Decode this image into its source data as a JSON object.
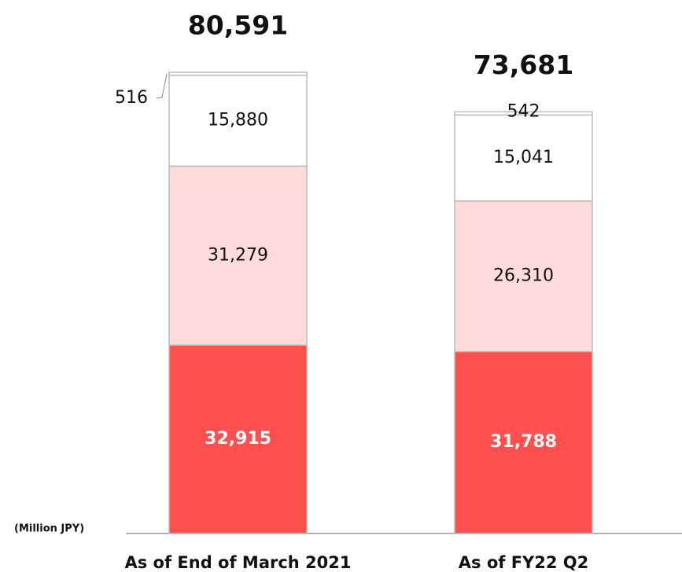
{
  "chart_data": {
    "type": "stacked_bar",
    "unit_label": "(Million JPY)",
    "categories": [
      "As of End of March 2021",
      "As of FY22 Q2"
    ],
    "series": [
      {
        "color": "#ff4f4f",
        "values": [
          32915,
          31788
        ],
        "value_labels": [
          "32,915",
          "31,788"
        ]
      },
      {
        "color": "#fddbdb",
        "values": [
          31279,
          26310
        ],
        "value_labels": [
          "31,279",
          "26,310"
        ]
      },
      {
        "color": "#ffffff",
        "values": [
          15880,
          15041
        ],
        "value_labels": [
          "15,880",
          "15,041"
        ]
      },
      {
        "color": "#ffffff",
        "values": [
          516,
          542
        ],
        "value_labels": [
          "516",
          "542"
        ]
      }
    ],
    "totals": {
      "values": [
        80591,
        73681
      ],
      "value_labels": [
        "80,591",
        "73,681"
      ]
    }
  }
}
